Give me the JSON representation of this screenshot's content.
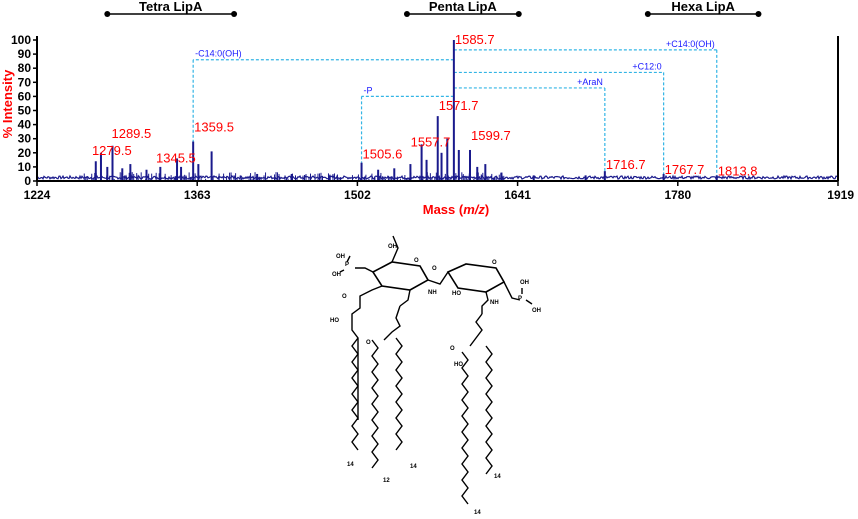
{
  "chart_data": {
    "type": "spectrum",
    "xlabel_prefix": "Mass (",
    "xlabel_italic": "m/z",
    "xlabel_suffix": ")",
    "ylabel": "% Intensity",
    "xlim": [
      1224,
      1919
    ],
    "ylim": [
      0,
      100
    ],
    "x_ticks": [
      1224,
      1363,
      1502,
      1641,
      1780,
      1919
    ],
    "y_ticks": [
      0,
      10,
      20,
      30,
      40,
      50,
      60,
      70,
      80,
      90,
      100
    ],
    "line_color": "#1a1a8c",
    "peaks": [
      {
        "mz": 1275.0,
        "intensity": 14
      },
      {
        "mz": 1279.5,
        "intensity": 20
      },
      {
        "mz": 1285.0,
        "intensity": 10
      },
      {
        "mz": 1289.5,
        "intensity": 25
      },
      {
        "mz": 1298.0,
        "intensity": 9
      },
      {
        "mz": 1305.0,
        "intensity": 12
      },
      {
        "mz": 1319.0,
        "intensity": 8
      },
      {
        "mz": 1331.0,
        "intensity": 10
      },
      {
        "mz": 1345.5,
        "intensity": 16
      },
      {
        "mz": 1349.0,
        "intensity": 10
      },
      {
        "mz": 1359.5,
        "intensity": 28
      },
      {
        "mz": 1364.0,
        "intensity": 12
      },
      {
        "mz": 1375.5,
        "intensity": 21
      },
      {
        "mz": 1415.0,
        "intensity": 5
      },
      {
        "mz": 1445.0,
        "intensity": 5
      },
      {
        "mz": 1478.0,
        "intensity": 4
      },
      {
        "mz": 1505.6,
        "intensity": 13
      },
      {
        "mz": 1520.0,
        "intensity": 8
      },
      {
        "mz": 1534.0,
        "intensity": 9
      },
      {
        "mz": 1548.0,
        "intensity": 12
      },
      {
        "mz": 1557.7,
        "intensity": 26
      },
      {
        "mz": 1562.0,
        "intensity": 15
      },
      {
        "mz": 1571.7,
        "intensity": 46
      },
      {
        "mz": 1575.0,
        "intensity": 20
      },
      {
        "mz": 1580.0,
        "intensity": 30
      },
      {
        "mz": 1585.7,
        "intensity": 100
      },
      {
        "mz": 1590.0,
        "intensity": 22
      },
      {
        "mz": 1599.7,
        "intensity": 22
      },
      {
        "mz": 1606.0,
        "intensity": 10
      },
      {
        "mz": 1613.0,
        "intensity": 12
      },
      {
        "mz": 1627.0,
        "intensity": 6
      },
      {
        "mz": 1655.0,
        "intensity": 4
      },
      {
        "mz": 1700.0,
        "intensity": 4
      },
      {
        "mz": 1716.7,
        "intensity": 7
      },
      {
        "mz": 1767.7,
        "intensity": 5
      },
      {
        "mz": 1813.8,
        "intensity": 4
      }
    ],
    "peak_labels": [
      {
        "text": "1279.5",
        "mz": 1279.5,
        "intensity": 20
      },
      {
        "text": "1289.5",
        "mz": 1289.5,
        "intensity": 25
      },
      {
        "text": "1345.5",
        "mz": 1345.5,
        "intensity": 16
      },
      {
        "text": "1359.5",
        "mz": 1359.5,
        "intensity": 28
      },
      {
        "text": "1505.6",
        "mz": 1505.6,
        "intensity": 13
      },
      {
        "text": "1557.7",
        "mz": 1557.7,
        "intensity": 26
      },
      {
        "text": "1571.7",
        "mz": 1571.7,
        "intensity": 46
      },
      {
        "text": "1585.7",
        "mz": 1585.7,
        "intensity": 100
      },
      {
        "text": "1599.7",
        "mz": 1599.7,
        "intensity": 22
      },
      {
        "text": "1716.7",
        "mz": 1716.7,
        "intensity": 7
      },
      {
        "text": "1767.7",
        "mz": 1767.7,
        "intensity": 5
      },
      {
        "text": "1813.8",
        "mz": 1813.8,
        "intensity": 4
      }
    ],
    "annotations": [
      {
        "label": "-C14:0(OH)",
        "from_mz": 1585.7,
        "to_mz": 1359.5,
        "level": 86
      },
      {
        "label": "-P",
        "from_mz": 1585.7,
        "to_mz": 1505.6,
        "level": 60
      },
      {
        "label": "+C14:0(OH)",
        "from_mz": 1585.7,
        "to_mz": 1813.8,
        "level": 93
      },
      {
        "label": "+C12:0",
        "from_mz": 1585.7,
        "to_mz": 1767.7,
        "level": 77
      },
      {
        "label": "+AraN",
        "from_mz": 1585.7,
        "to_mz": 1716.7,
        "level": 66
      }
    ],
    "groups": [
      {
        "label": "Tetra LipA",
        "from_mz": 1285,
        "to_mz": 1395
      },
      {
        "label": "Penta LipA",
        "from_mz": 1545,
        "to_mz": 1642
      },
      {
        "label": "Hexa LipA",
        "from_mz": 1754,
        "to_mz": 1850
      }
    ]
  },
  "structure": {
    "labels": {
      "oh_top": "OH",
      "p_left": "P",
      "oh_p_left_1": "OH",
      "oh_p_left_2": "OH",
      "o_left": "O",
      "nh_left": "NH",
      "ho_right": "HO",
      "nh_right": "NH",
      "p_right": "P",
      "oh_p_right_1": "OH",
      "oh_p_right_2": "OH",
      "ho_chain": "HO",
      "ho_chain2": "HO",
      "o_bridge": "O",
      "o_ring_left": "O",
      "o_ring_right": "O",
      "o_ester_left": "O",
      "o_ester_right": "O",
      "n14_a": "14",
      "n12": "12",
      "n14_b": "14",
      "n14_c": "14",
      "n14_d": "14"
    }
  }
}
